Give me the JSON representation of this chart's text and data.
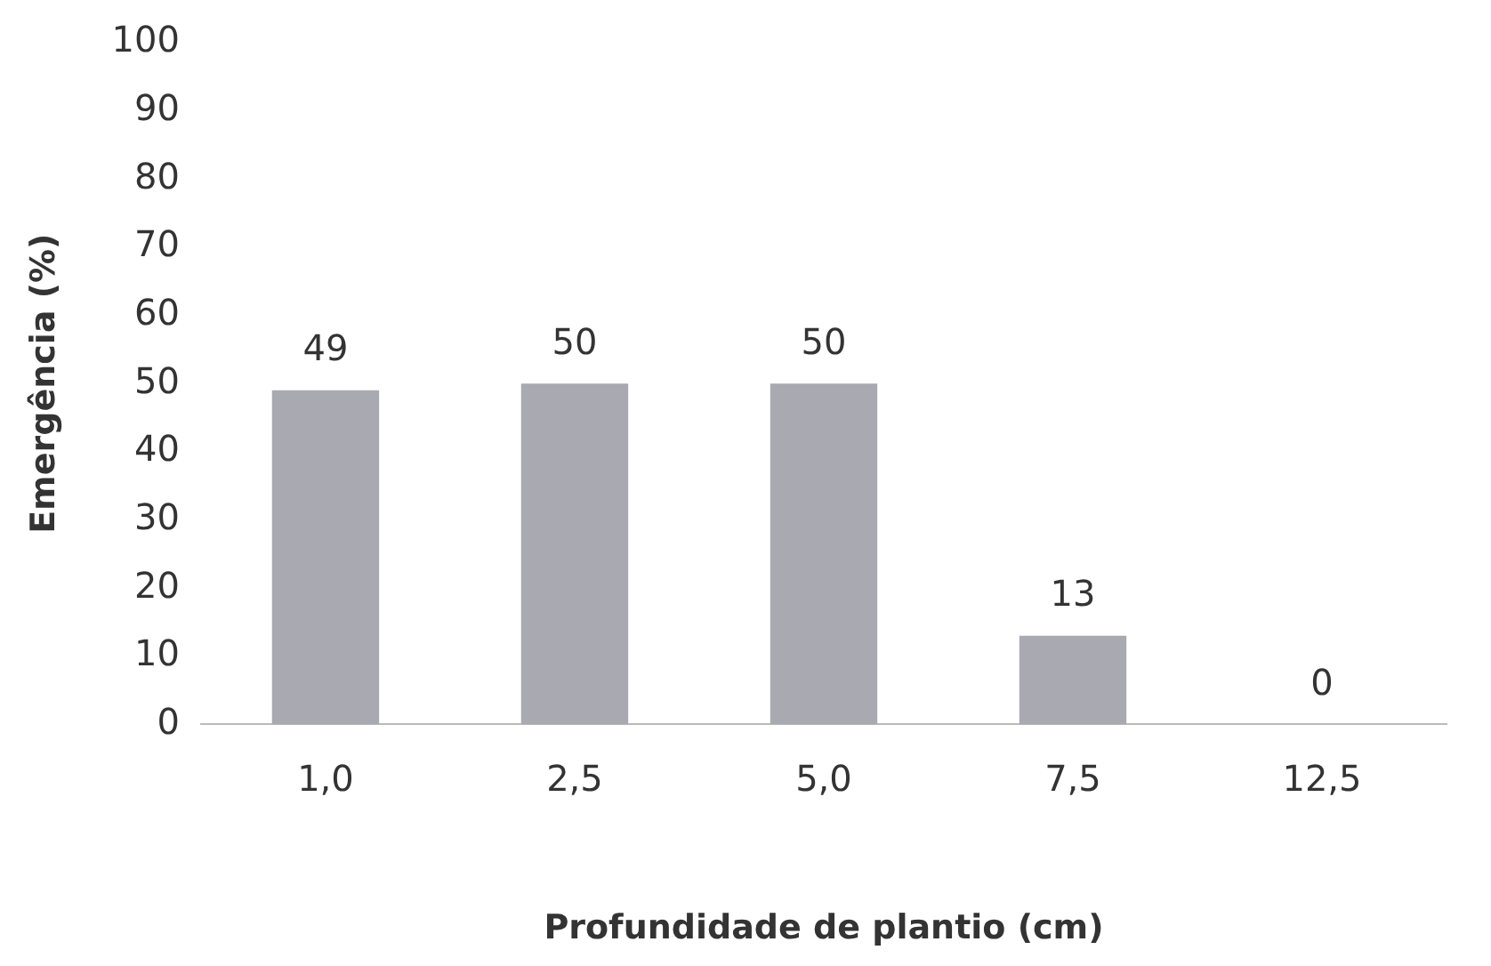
{
  "chart_data": {
    "type": "bar",
    "xlabel": "Profundidade de plantio (cm)",
    "ylabel": "Emergência (%)",
    "categories": [
      "1,0",
      "2,5",
      "5,0",
      "7,5",
      "12,5"
    ],
    "values": [
      49,
      50,
      50,
      13,
      0
    ],
    "color": "#a9a9b1",
    "ylim": [
      0,
      100
    ],
    "yticks": [
      0,
      10,
      20,
      30,
      40,
      50,
      60,
      70,
      80,
      90,
      100
    ],
    "grid": false,
    "legend": false,
    "data_labels": true
  }
}
